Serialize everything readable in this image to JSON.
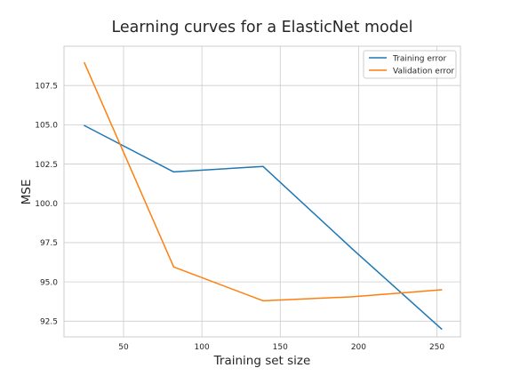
{
  "chart_data": {
    "type": "line",
    "title": "Learning curves for a ElasticNet model",
    "xlabel": "Training set size",
    "ylabel": "MSE",
    "xlim": [
      12,
      265
    ],
    "ylim": [
      91.5,
      110.0
    ],
    "xticks": [
      50,
      100,
      150,
      200,
      250
    ],
    "xtick_labels": [
      "50",
      "100",
      "150",
      "200",
      "250"
    ],
    "yticks": [
      92.5,
      95.0,
      97.5,
      100.0,
      102.5,
      105.0,
      107.5
    ],
    "ytick_labels": [
      "92.5",
      "95.0",
      "97.5",
      "100.0",
      "102.5",
      "105.0",
      "107.5"
    ],
    "grid": true,
    "legend_position": "top-right",
    "series": [
      {
        "name": "Training error",
        "color": "#1f77b4",
        "x": [
          25,
          82,
          139,
          196,
          253
        ],
        "y": [
          104.95,
          102.0,
          102.35,
          97.1,
          92.0
        ]
      },
      {
        "name": "Validation error",
        "color": "#ff7f0e",
        "x": [
          25,
          82,
          139,
          196,
          253
        ],
        "y": [
          108.95,
          95.95,
          93.8,
          94.05,
          94.5
        ]
      }
    ]
  }
}
